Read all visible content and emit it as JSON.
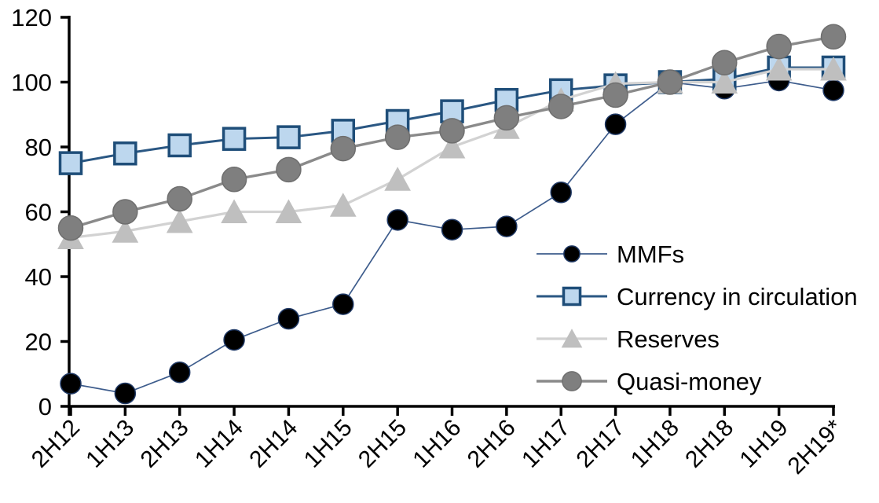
{
  "chart_data": {
    "type": "line",
    "title": "",
    "xlabel": "",
    "ylabel": "",
    "categories": [
      "2H12",
      "1H13",
      "2H13",
      "1H14",
      "2H14",
      "1H15",
      "2H15",
      "1H16",
      "2H16",
      "1H17",
      "2H17",
      "1H18",
      "2H18",
      "1H19",
      "2H19*"
    ],
    "series": [
      {
        "name": "MMFs",
        "marker": "circle",
        "values": [
          7,
          4,
          10.5,
          20.5,
          27,
          31.5,
          57.5,
          54.5,
          55.5,
          66,
          87,
          100,
          98,
          100.5,
          97.5
        ],
        "line_color": "#3D5C8C",
        "marker_fill": "#000000",
        "marker_stroke": "#1F3864"
      },
      {
        "name": "Currency in circulation",
        "marker": "square",
        "values": [
          75,
          78,
          80.5,
          82.5,
          83,
          85,
          88,
          91,
          94.5,
          97.5,
          99,
          100,
          101,
          104.5,
          104.5
        ],
        "line_color": "#2A5783",
        "marker_fill": "#BDD7EE",
        "marker_stroke": "#1F4E79"
      },
      {
        "name": "Reserves",
        "marker": "triangle",
        "values": [
          52,
          54,
          57,
          60,
          60,
          62,
          70,
          80,
          86,
          94.5,
          99.5,
          100,
          100,
          104,
          104
        ],
        "line_color": "#D2D2D2",
        "marker_fill": "#BFBFBF",
        "marker_stroke": "#BFBFBF"
      },
      {
        "name": "Quasi-money",
        "marker": "circle",
        "values": [
          55,
          60,
          64,
          70,
          73,
          79.5,
          83,
          85,
          89,
          92.5,
          96,
          100,
          106,
          111,
          114
        ],
        "line_color": "#8A8A8A",
        "marker_fill": "#7F7F7F",
        "marker_stroke": "#6F6F6F"
      }
    ],
    "ylim": [
      0,
      120
    ],
    "ytick_step": 20,
    "ytick_labels": [
      "0",
      "20",
      "40",
      "60",
      "80",
      "100",
      "120"
    ],
    "grid": "off",
    "legend_position": "inside-right",
    "legend_entries": [
      "MMFs",
      "Currency in circulation",
      "Reserves",
      "Quasi-money"
    ],
    "axis_color": "#000000",
    "background_color": "#FFFFFF"
  }
}
